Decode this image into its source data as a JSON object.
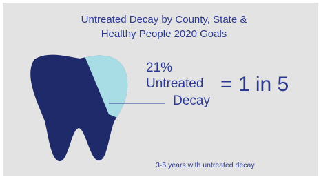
{
  "header": {
    "title_lines": [
      "Untreated Decay by County, State &",
      "Healthy People 2020 Goals"
    ]
  },
  "callout": {
    "percent": "21%",
    "label_lines": [
      "Untreated",
      "Decay"
    ],
    "ratio": "= 1 in 5"
  },
  "footnote": "3-5 years with untreated decay"
}
